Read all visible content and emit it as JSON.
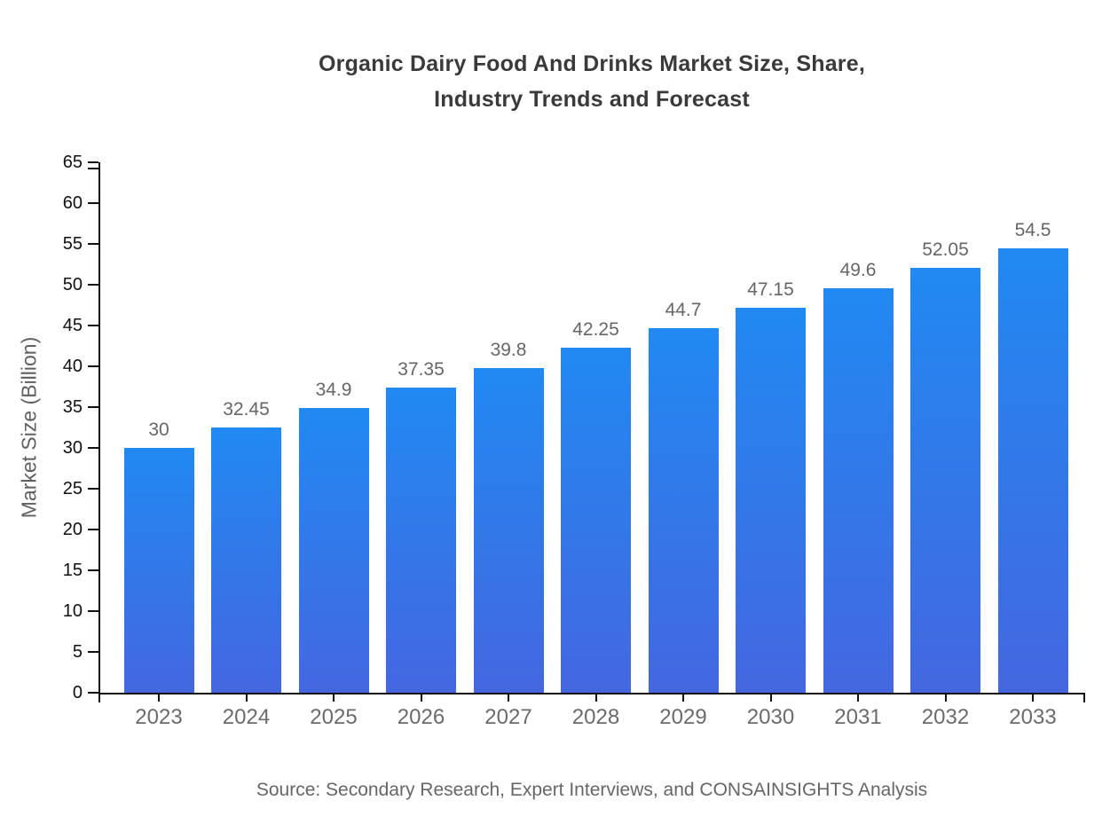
{
  "chart_data": {
    "type": "bar",
    "title": "Organic Dairy Food And Drinks Market Size, Share,\nIndustry Trends and Forecast",
    "categories": [
      "2023",
      "2024",
      "2025",
      "2026",
      "2027",
      "2028",
      "2029",
      "2030",
      "2031",
      "2032",
      "2033"
    ],
    "values": [
      30,
      32.45,
      34.9,
      37.35,
      39.8,
      42.25,
      44.7,
      47.15,
      49.6,
      52.05,
      54.5
    ],
    "xlabel": "",
    "ylabel": "Market Size (Billion)",
    "ylim": [
      0,
      65
    ],
    "yticks": [
      0,
      5,
      10,
      15,
      20,
      25,
      30,
      35,
      40,
      45,
      50,
      55,
      60,
      65
    ],
    "grid": false,
    "legend": false,
    "value_labels_shown": true,
    "colors": {
      "bar_gradient_top": "#2189f2",
      "bar_gradient_bottom": "#4467e0",
      "axis": "#111111",
      "title_text": "#3a3a3a",
      "tick_label_y": "#111111",
      "tick_label_x": "#6b6b6b",
      "value_label": "#666666",
      "axis_title": "#606060",
      "source_text": "#666666"
    }
  },
  "footer": {
    "source": "Source: Secondary Research, Expert Interviews, and CONSAINSIGHTS Analysis"
  }
}
